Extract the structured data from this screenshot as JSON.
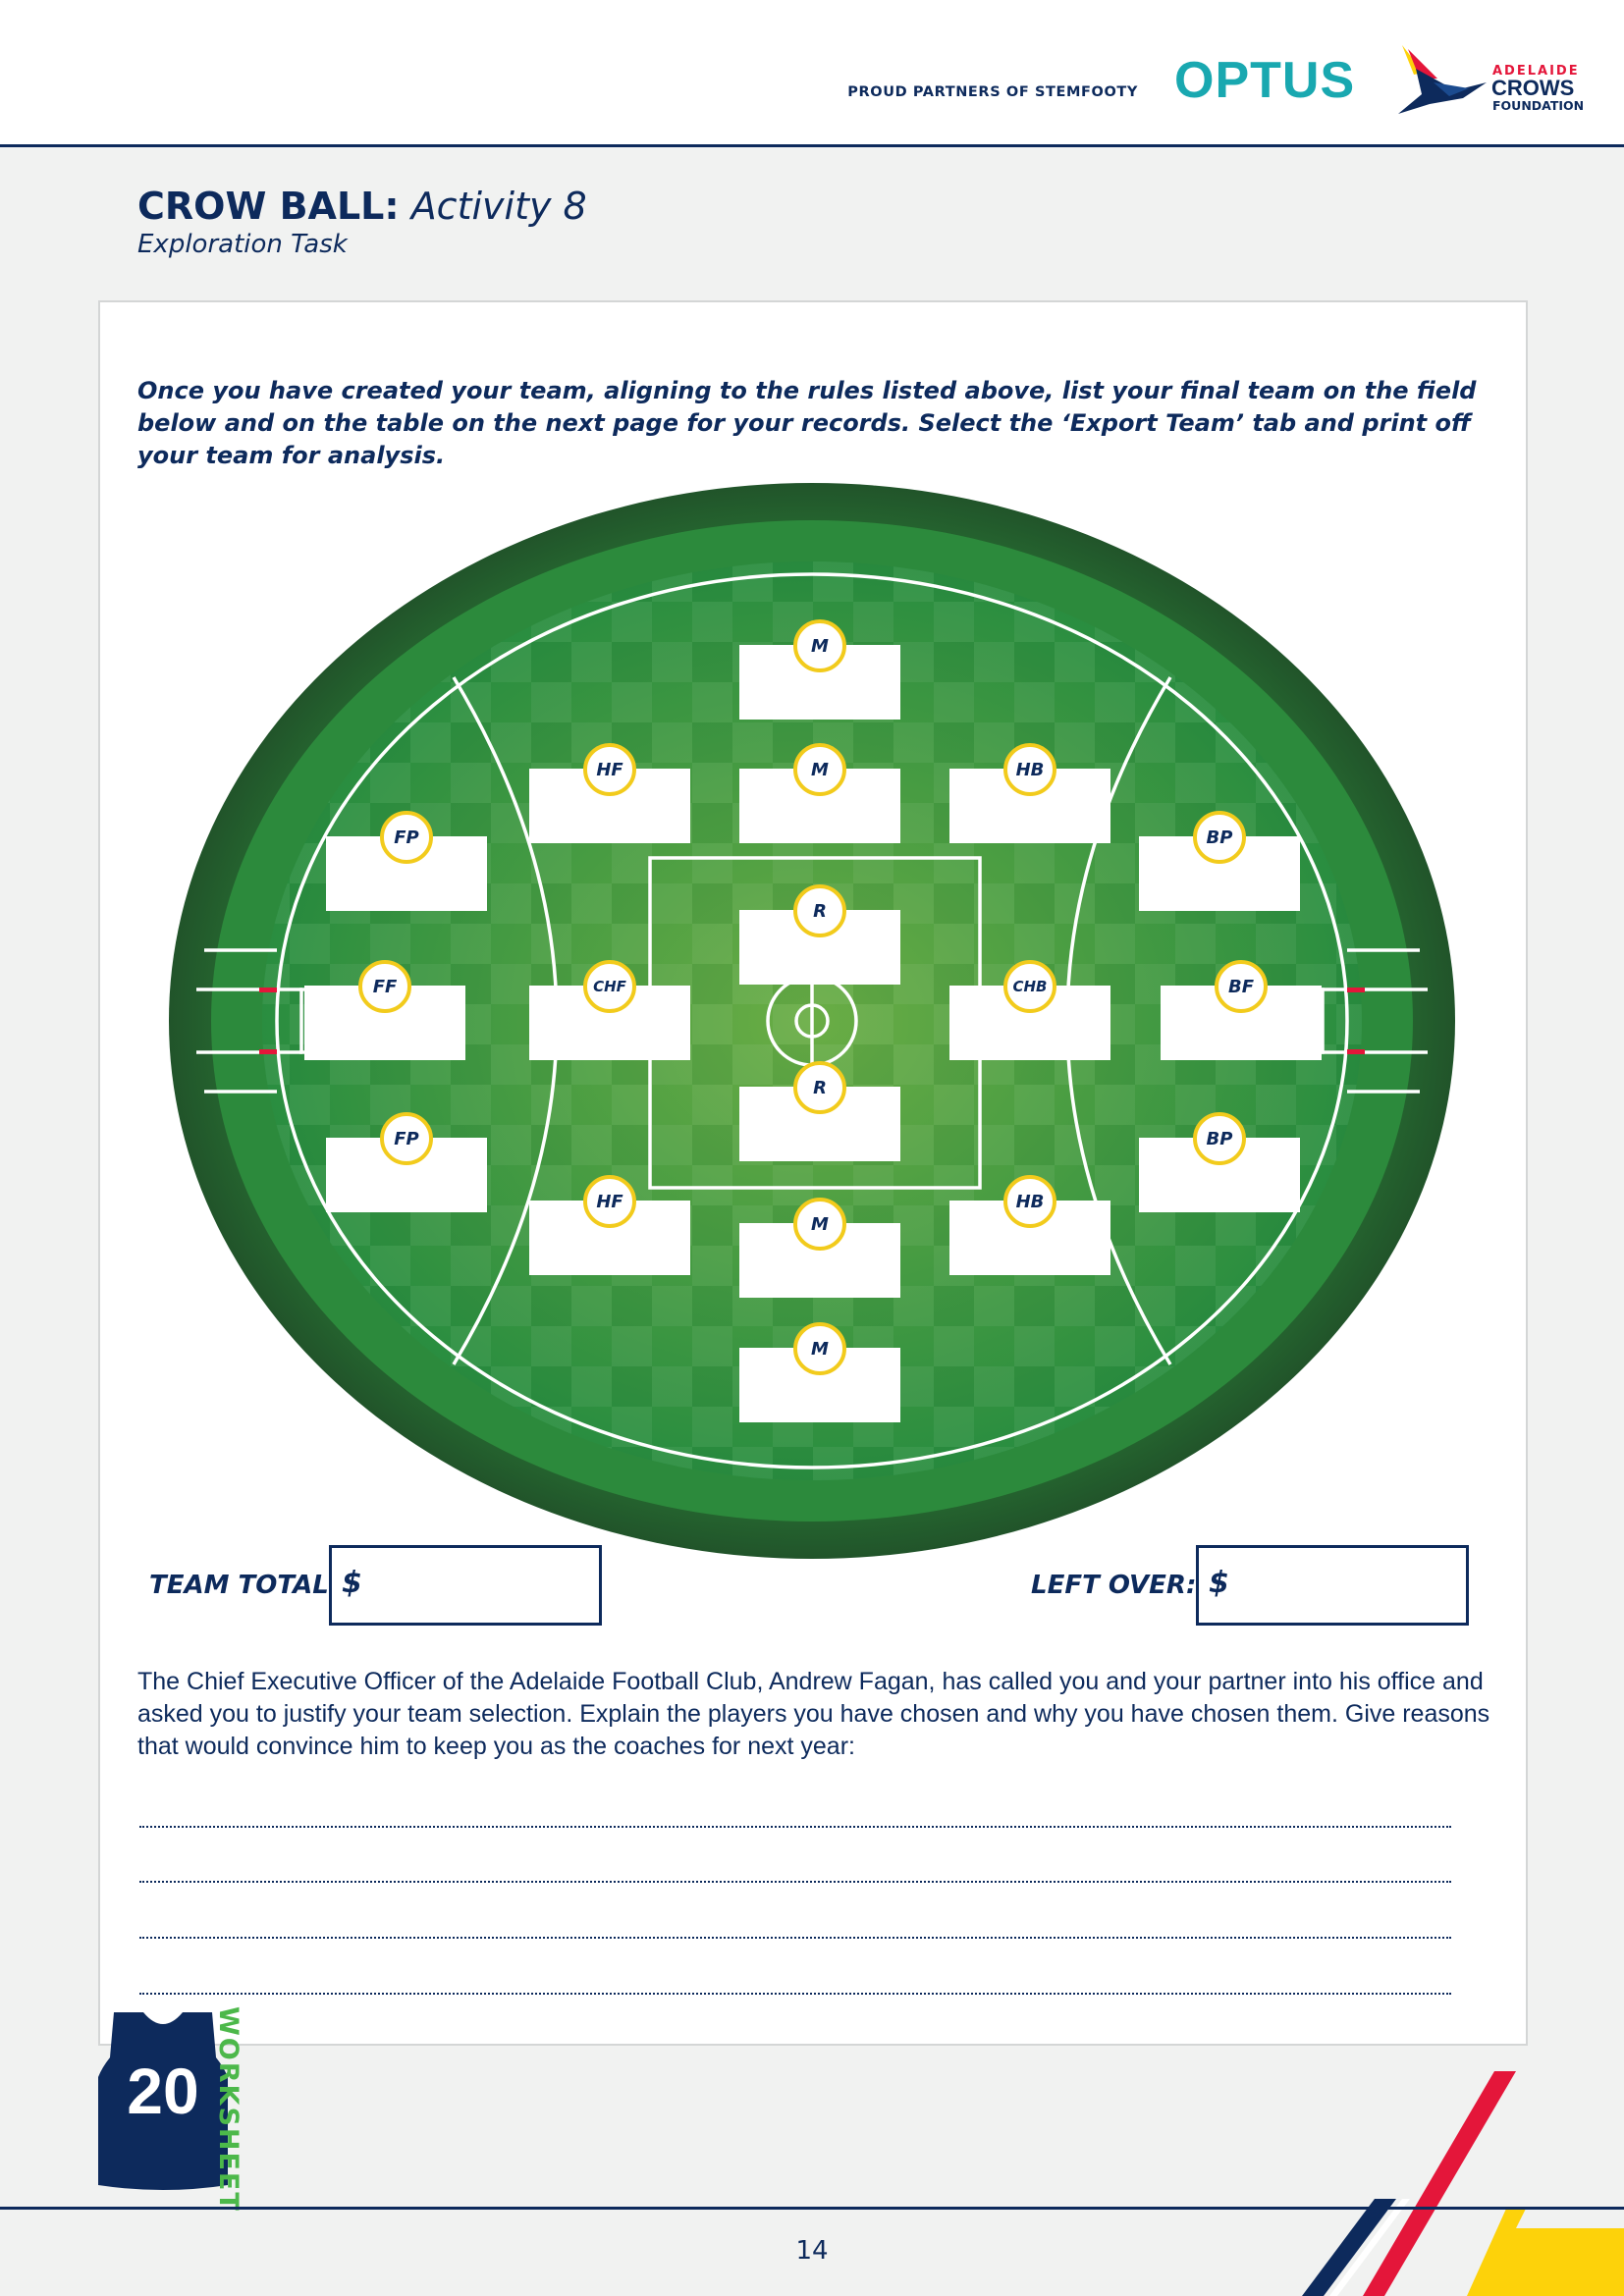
{
  "header": {
    "partners_text": "PROUD PARTNERS OF STEMFOOTY",
    "optus_logo_text": "OPTUS",
    "crows_logo": {
      "line1": "ADELAIDE",
      "line2": "CROWS",
      "line3": "FOUNDATION"
    }
  },
  "title": {
    "bold": "CROW BALL:",
    "italic": "Activity 8",
    "subtitle": "Exploration Task"
  },
  "intro_text": "Once you have created your team, aligning to the rules listed above, list your final team on the field  below and on the table on the next page for your records. Select the ‘Export Team’ tab and print off your team for analysis.",
  "field_positions": [
    {
      "label": "M",
      "value": ""
    },
    {
      "label": "HF",
      "value": ""
    },
    {
      "label": "M",
      "value": ""
    },
    {
      "label": "HB",
      "value": ""
    },
    {
      "label": "FP",
      "value": ""
    },
    {
      "label": "BP",
      "value": ""
    },
    {
      "label": "R",
      "value": ""
    },
    {
      "label": "FF",
      "value": ""
    },
    {
      "label": "CHF",
      "value": ""
    },
    {
      "label": "CHB",
      "value": ""
    },
    {
      "label": "BF",
      "value": ""
    },
    {
      "label": "R",
      "value": ""
    },
    {
      "label": "FP",
      "value": ""
    },
    {
      "label": "BP",
      "value": ""
    },
    {
      "label": "HF",
      "value": ""
    },
    {
      "label": "M",
      "value": ""
    },
    {
      "label": "HB",
      "value": ""
    },
    {
      "label": "M",
      "value": ""
    }
  ],
  "team_total": {
    "label": "TEAM TOTAL:",
    "currency": "$",
    "value": ""
  },
  "left_over": {
    "label": "LEFT OVER:",
    "currency": "$",
    "value": ""
  },
  "ceo_prompt": "The Chief Executive Officer of the Adelaide Football Club, Andrew Fagan, has called you and your partner into his office and asked you to justify your team selection. Explain the players you have chosen and why you have chosen them. Give reasons that would convince him to keep you as the coaches for next year:",
  "answer_lines": [
    "",
    "",
    "",
    ""
  ],
  "jersey_number": "20",
  "worksheet_label": "WORKSHEET",
  "page_number": "14",
  "colors": {
    "navy": "#0d2a5c",
    "optus_teal": "#19a8b0",
    "crows_red": "#e4163a",
    "crows_yellow": "#fdd20a",
    "worksheet_green": "#4cb84a",
    "badge_yellow": "#f2cb1c",
    "grass_green": "#2e8a3c"
  }
}
